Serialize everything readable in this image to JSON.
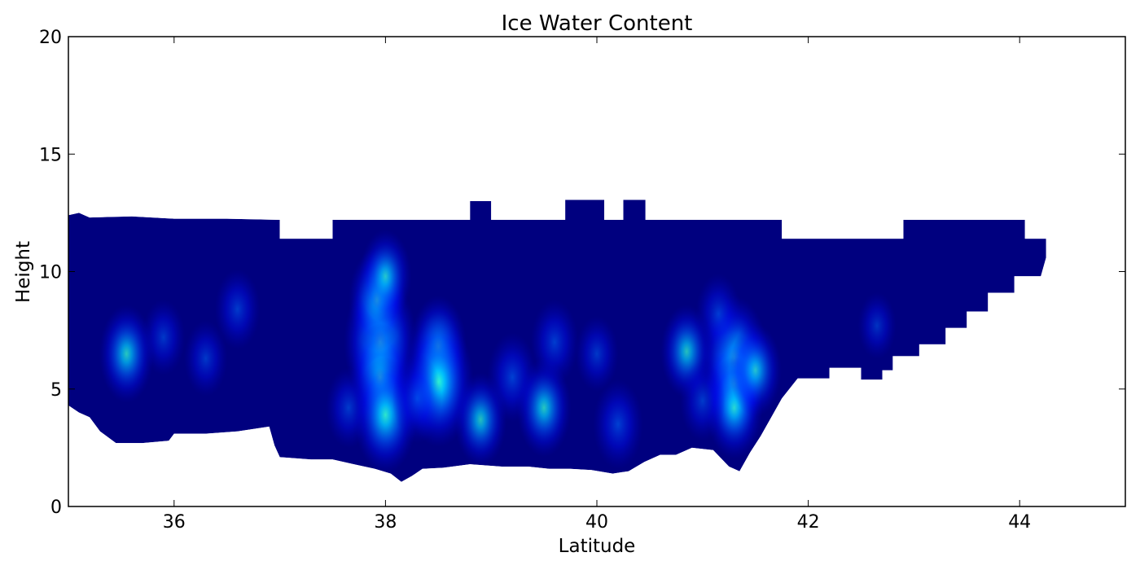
{
  "chart_data": {
    "type": "heatmap",
    "title": "Ice Water Content",
    "xlabel": "Latitude",
    "ylabel": "Height",
    "xlim": [
      35,
      45
    ],
    "ylim": [
      0,
      20
    ],
    "x_ticks": [
      "36",
      "38",
      "40",
      "42",
      "44"
    ],
    "x_tick_values": [
      36,
      38,
      40,
      42,
      44
    ],
    "y_ticks": [
      "0",
      "5",
      "10",
      "15",
      "20"
    ],
    "y_tick_values": [
      0,
      5,
      10,
      15,
      20
    ],
    "grid": false,
    "colormap": [
      "#00007f",
      "#0000c8",
      "#0010ff",
      "#0064ff",
      "#00c8ff",
      "#33ffd0"
    ],
    "cloud_top": [
      [
        35.0,
        12.4
      ],
      [
        35.1,
        12.5
      ],
      [
        35.2,
        12.3
      ],
      [
        35.6,
        12.35
      ],
      [
        36.0,
        12.25
      ],
      [
        36.5,
        12.25
      ],
      [
        37.0,
        12.2
      ],
      [
        37.0,
        11.4
      ],
      [
        37.5,
        11.4
      ],
      [
        37.5,
        12.2
      ],
      [
        38.8,
        12.2
      ],
      [
        38.8,
        13.0
      ],
      [
        39.0,
        13.0
      ],
      [
        39.0,
        12.2
      ],
      [
        39.7,
        12.2
      ],
      [
        39.7,
        13.05
      ],
      [
        40.07,
        13.05
      ],
      [
        40.07,
        12.2
      ],
      [
        40.25,
        12.2
      ],
      [
        40.25,
        13.05
      ],
      [
        40.46,
        13.05
      ],
      [
        40.46,
        12.2
      ],
      [
        41.75,
        12.2
      ],
      [
        41.75,
        11.4
      ],
      [
        42.9,
        11.4
      ],
      [
        42.9,
        12.2
      ],
      [
        44.05,
        12.2
      ],
      [
        44.05,
        11.4
      ],
      [
        44.25,
        11.4
      ],
      [
        44.25,
        10.6
      ]
    ],
    "cloud_base": [
      [
        44.25,
        10.6
      ],
      [
        44.2,
        9.8
      ],
      [
        43.95,
        9.8
      ],
      [
        43.95,
        9.1
      ],
      [
        43.7,
        9.1
      ],
      [
        43.7,
        8.3
      ],
      [
        43.5,
        8.3
      ],
      [
        43.5,
        7.6
      ],
      [
        43.3,
        7.6
      ],
      [
        43.3,
        6.9
      ],
      [
        43.05,
        6.9
      ],
      [
        43.05,
        6.4
      ],
      [
        42.8,
        6.4
      ],
      [
        42.8,
        5.8
      ],
      [
        42.7,
        5.8
      ],
      [
        42.7,
        5.4
      ],
      [
        42.5,
        5.4
      ],
      [
        42.5,
        5.9
      ],
      [
        42.2,
        5.9
      ],
      [
        42.2,
        5.45
      ],
      [
        41.9,
        5.45
      ],
      [
        41.75,
        4.6
      ],
      [
        41.55,
        3.0
      ],
      [
        41.45,
        2.3
      ],
      [
        41.35,
        1.5
      ],
      [
        41.25,
        1.7
      ],
      [
        41.1,
        2.4
      ],
      [
        40.9,
        2.5
      ],
      [
        40.75,
        2.2
      ],
      [
        40.6,
        2.2
      ],
      [
        40.45,
        1.9
      ],
      [
        40.3,
        1.5
      ],
      [
        40.15,
        1.4
      ],
      [
        39.95,
        1.55
      ],
      [
        39.75,
        1.6
      ],
      [
        39.55,
        1.6
      ],
      [
        39.35,
        1.7
      ],
      [
        39.1,
        1.7
      ],
      [
        38.8,
        1.8
      ],
      [
        38.55,
        1.65
      ],
      [
        38.35,
        1.6
      ],
      [
        38.25,
        1.3
      ],
      [
        38.15,
        1.05
      ],
      [
        38.05,
        1.4
      ],
      [
        37.9,
        1.6
      ],
      [
        37.7,
        1.8
      ],
      [
        37.5,
        2.0
      ],
      [
        37.3,
        2.0
      ],
      [
        37.0,
        2.1
      ],
      [
        36.95,
        2.6
      ],
      [
        36.9,
        3.4
      ],
      [
        36.6,
        3.2
      ],
      [
        36.3,
        3.1
      ],
      [
        36.0,
        3.1
      ],
      [
        35.95,
        2.8
      ],
      [
        35.7,
        2.7
      ],
      [
        35.45,
        2.7
      ],
      [
        35.3,
        3.2
      ],
      [
        35.2,
        3.8
      ],
      [
        35.1,
        4.0
      ],
      [
        35.0,
        4.3
      ]
    ],
    "cores": [
      {
        "lat": 35.55,
        "height": 6.5,
        "intensity": 0.55
      },
      {
        "lat": 35.9,
        "height": 7.2,
        "intensity": 0.3
      },
      {
        "lat": 36.6,
        "height": 8.4,
        "intensity": 0.35
      },
      {
        "lat": 36.3,
        "height": 6.3,
        "intensity": 0.3
      },
      {
        "lat": 37.65,
        "height": 4.2,
        "intensity": 0.35
      },
      {
        "lat": 37.95,
        "height": 7.0,
        "intensity": 0.95
      },
      {
        "lat": 37.92,
        "height": 8.8,
        "intensity": 0.6
      },
      {
        "lat": 38.0,
        "height": 9.8,
        "intensity": 0.5
      },
      {
        "lat": 37.95,
        "height": 5.5,
        "intensity": 0.65
      },
      {
        "lat": 38.0,
        "height": 3.9,
        "intensity": 0.75
      },
      {
        "lat": 38.5,
        "height": 6.8,
        "intensity": 0.6
      },
      {
        "lat": 38.5,
        "height": 5.3,
        "intensity": 0.9
      },
      {
        "lat": 38.3,
        "height": 4.6,
        "intensity": 0.45
      },
      {
        "lat": 38.9,
        "height": 3.7,
        "intensity": 0.5
      },
      {
        "lat": 39.2,
        "height": 5.5,
        "intensity": 0.45
      },
      {
        "lat": 39.5,
        "height": 4.2,
        "intensity": 0.55
      },
      {
        "lat": 39.6,
        "height": 7.0,
        "intensity": 0.4
      },
      {
        "lat": 40.2,
        "height": 3.5,
        "intensity": 0.45
      },
      {
        "lat": 40.0,
        "height": 6.5,
        "intensity": 0.3
      },
      {
        "lat": 40.85,
        "height": 6.6,
        "intensity": 0.5
      },
      {
        "lat": 41.3,
        "height": 6.3,
        "intensity": 0.85
      },
      {
        "lat": 41.3,
        "height": 5.2,
        "intensity": 0.6
      },
      {
        "lat": 41.3,
        "height": 4.2,
        "intensity": 0.6
      },
      {
        "lat": 41.15,
        "height": 8.2,
        "intensity": 0.35
      },
      {
        "lat": 41.5,
        "height": 5.8,
        "intensity": 0.5
      },
      {
        "lat": 41.0,
        "height": 4.5,
        "intensity": 0.35
      },
      {
        "lat": 42.65,
        "height": 7.7,
        "intensity": 0.2
      }
    ]
  }
}
